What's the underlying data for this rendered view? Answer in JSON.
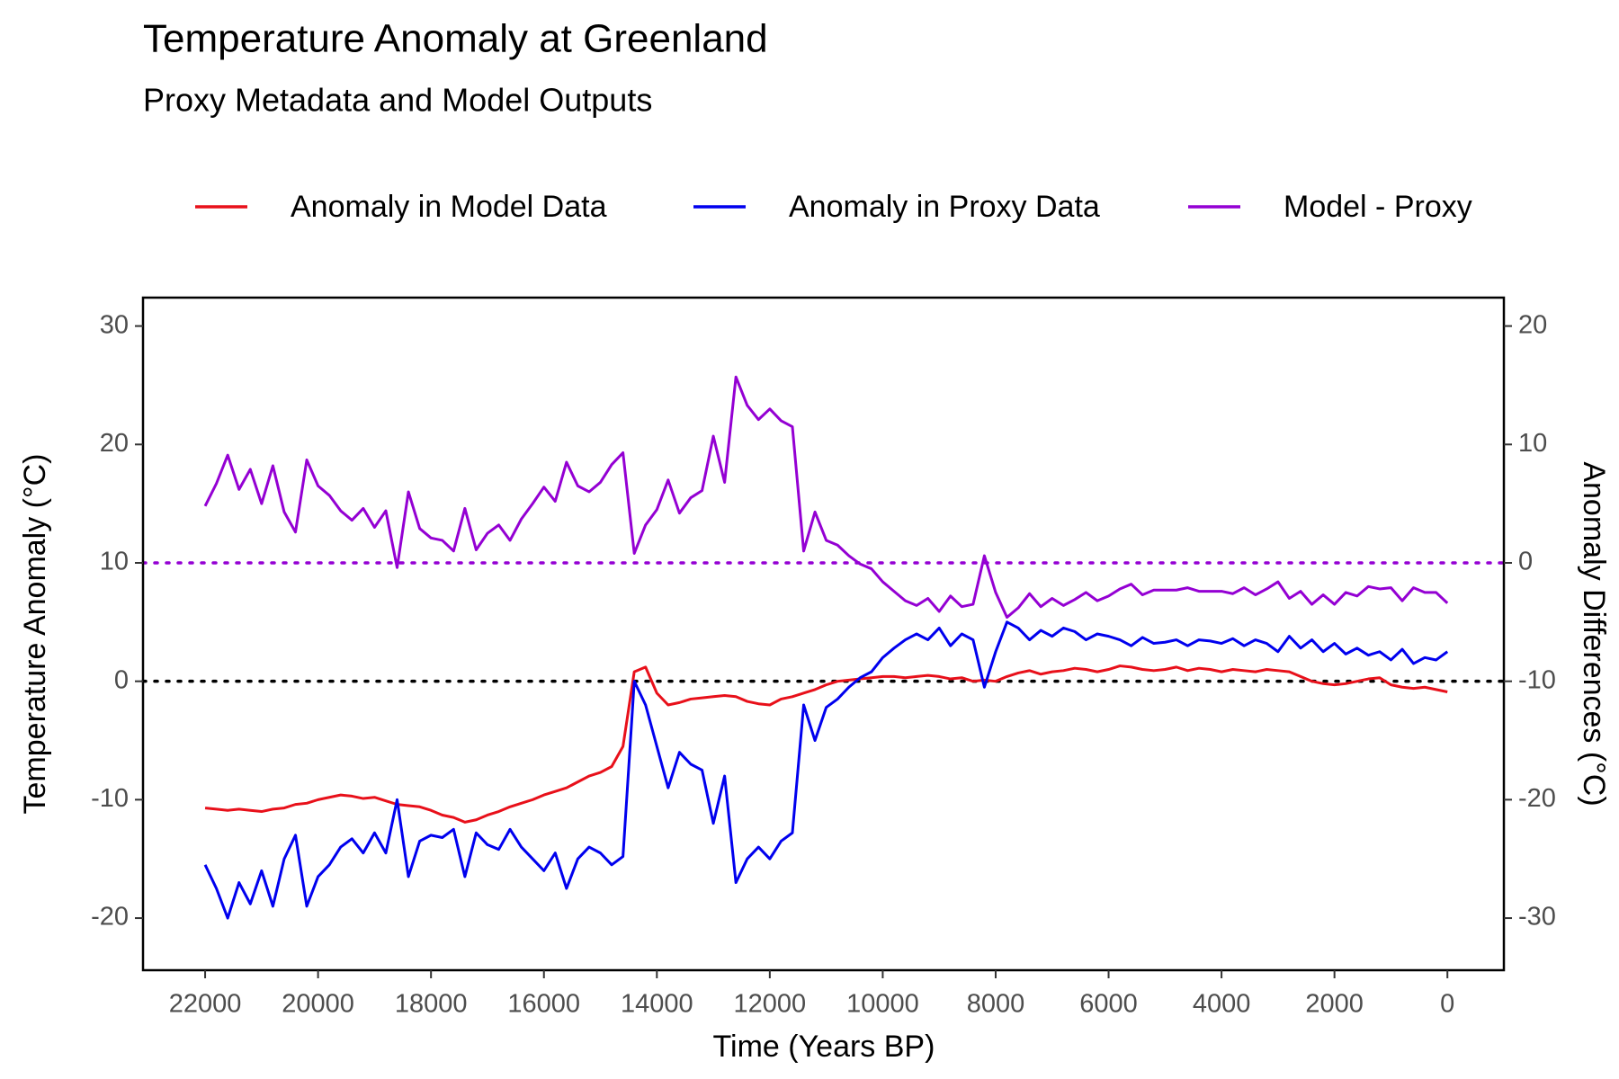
{
  "chart_data": {
    "type": "line",
    "title": "Temperature Anomaly at Greenland",
    "subtitle": "Proxy Metadata and Model Outputs",
    "xlabel": "Time (Years BP)",
    "ylabel": "Temperature Anomaly (°C)",
    "y2label": "Anomaly Differences (°C)",
    "xlim": [
      23100,
      -1000
    ],
    "xticks": [
      22000,
      20000,
      18000,
      16000,
      14000,
      12000,
      10000,
      8000,
      6000,
      4000,
      2000,
      0
    ],
    "ylim": [
      -24.4,
      32.4
    ],
    "yticks": [
      -20,
      -10,
      0,
      10,
      20,
      30
    ],
    "y2lim": [
      -34.4,
      22.4
    ],
    "y2ticks": [
      -30,
      -20,
      -10,
      0,
      10,
      20
    ],
    "legend": "top",
    "grid": false,
    "hlines": [
      {
        "value": 0,
        "axis": "y",
        "color": "#000000"
      },
      {
        "value": 0,
        "axis": "y2",
        "color": "#9400d3"
      }
    ],
    "x": [
      22000,
      21800,
      21600,
      21400,
      21200,
      21000,
      20800,
      20600,
      20400,
      20200,
      20000,
      19800,
      19600,
      19400,
      19200,
      19000,
      18800,
      18600,
      18400,
      18200,
      18000,
      17800,
      17600,
      17400,
      17200,
      17000,
      16800,
      16600,
      16400,
      16200,
      16000,
      15800,
      15600,
      15400,
      15200,
      15000,
      14800,
      14600,
      14400,
      14200,
      14000,
      13800,
      13600,
      13400,
      13200,
      13000,
      12800,
      12600,
      12400,
      12200,
      12000,
      11800,
      11600,
      11400,
      11200,
      11000,
      10800,
      10600,
      10400,
      10200,
      10000,
      9800,
      9600,
      9400,
      9200,
      9000,
      8800,
      8600,
      8400,
      8200,
      8000,
      7800,
      7600,
      7400,
      7200,
      7000,
      6800,
      6600,
      6400,
      6200,
      6000,
      5800,
      5600,
      5400,
      5200,
      5000,
      4800,
      4600,
      4400,
      4200,
      4000,
      3800,
      3600,
      3400,
      3200,
      3000,
      2800,
      2600,
      2400,
      2200,
      2000,
      1800,
      1600,
      1400,
      1200,
      1000,
      800,
      600,
      400,
      200,
      0
    ],
    "series": [
      {
        "name": "Anomaly in Model Data",
        "color": "#e8101a",
        "axis": "y",
        "values": [
          -10.7,
          -10.8,
          -10.9,
          -10.8,
          -10.9,
          -11.0,
          -10.8,
          -10.7,
          -10.4,
          -10.3,
          -10.0,
          -9.8,
          -9.6,
          -9.7,
          -9.9,
          -9.8,
          -10.1,
          -10.4,
          -10.5,
          -10.6,
          -10.9,
          -11.3,
          -11.5,
          -11.9,
          -11.7,
          -11.3,
          -11.0,
          -10.6,
          -10.3,
          -10.0,
          -9.6,
          -9.3,
          -9.0,
          -8.5,
          -8.0,
          -7.7,
          -7.2,
          -5.5,
          0.8,
          1.2,
          -1.0,
          -2.0,
          -1.8,
          -1.5,
          -1.4,
          -1.3,
          -1.2,
          -1.3,
          -1.7,
          -1.9,
          -2.0,
          -1.5,
          -1.3,
          -1.0,
          -0.7,
          -0.3,
          0.0,
          0.1,
          0.2,
          0.3,
          0.4,
          0.4,
          0.3,
          0.4,
          0.5,
          0.4,
          0.2,
          0.3,
          0.0,
          0.1,
          0.0,
          0.4,
          0.7,
          0.9,
          0.6,
          0.8,
          0.9,
          1.1,
          1.0,
          0.8,
          1.0,
          1.3,
          1.2,
          1.0,
          0.9,
          1.0,
          1.2,
          0.9,
          1.1,
          1.0,
          0.8,
          1.0,
          0.9,
          0.8,
          1.0,
          0.9,
          0.8,
          0.4,
          0.0,
          -0.2,
          -0.3,
          -0.2,
          0.0,
          0.2,
          0.3,
          -0.3,
          -0.5,
          -0.6,
          -0.5,
          -0.7,
          -0.9
        ]
      },
      {
        "name": "Anomaly in Proxy Data",
        "color": "#0000ee",
        "axis": "y",
        "values": [
          -15.5,
          -17.5,
          -20.0,
          -17.0,
          -18.8,
          -16.0,
          -19.0,
          -15.0,
          -13.0,
          -19.0,
          -16.5,
          -15.5,
          -14.0,
          -13.3,
          -14.5,
          -12.8,
          -14.5,
          -10.0,
          -16.5,
          -13.5,
          -13.0,
          -13.2,
          -12.5,
          -16.5,
          -12.8,
          -13.8,
          -14.2,
          -12.5,
          -14.0,
          -15.0,
          -16.0,
          -14.5,
          -17.5,
          -15.0,
          -14.0,
          -14.5,
          -15.5,
          -14.8,
          0.0,
          -2.0,
          -5.5,
          -9.0,
          -6.0,
          -7.0,
          -7.5,
          -12.0,
          -8.0,
          -17.0,
          -15.0,
          -14.0,
          -15.0,
          -13.5,
          -12.8,
          -2.0,
          -5.0,
          -2.2,
          -1.5,
          -0.5,
          0.3,
          0.8,
          2.0,
          2.8,
          3.5,
          4.0,
          3.5,
          4.5,
          3.0,
          4.0,
          3.5,
          -0.5,
          2.5,
          5.0,
          4.5,
          3.5,
          4.3,
          3.8,
          4.5,
          4.2,
          3.5,
          4.0,
          3.8,
          3.5,
          3.0,
          3.7,
          3.2,
          3.3,
          3.5,
          3.0,
          3.5,
          3.4,
          3.2,
          3.6,
          3.0,
          3.5,
          3.2,
          2.5,
          3.8,
          2.8,
          3.5,
          2.5,
          3.2,
          2.3,
          2.8,
          2.2,
          2.5,
          1.8,
          2.7,
          1.5,
          2.0,
          1.8,
          2.5
        ]
      },
      {
        "name": "Model - Proxy",
        "color": "#9400d3",
        "axis": "y2",
        "values": [
          4.8,
          6.7,
          9.1,
          6.2,
          7.9,
          5.0,
          8.2,
          4.3,
          2.6,
          8.7,
          6.5,
          5.7,
          4.4,
          3.6,
          4.6,
          3.0,
          4.4,
          -0.4,
          6.0,
          2.9,
          2.1,
          1.9,
          1.0,
          4.6,
          1.1,
          2.5,
          3.2,
          1.9,
          3.7,
          5.0,
          6.4,
          5.2,
          8.5,
          6.5,
          6.0,
          6.8,
          8.3,
          9.3,
          0.8,
          3.2,
          4.5,
          7.0,
          4.2,
          5.5,
          6.1,
          10.7,
          6.8,
          15.7,
          13.3,
          12.1,
          13.0,
          12.0,
          11.5,
          1.0,
          4.3,
          1.9,
          1.5,
          0.6,
          -0.1,
          -0.5,
          -1.6,
          -2.4,
          -3.2,
          -3.6,
          -3.0,
          -4.1,
          -2.8,
          -3.7,
          -3.5,
          0.6,
          -2.5,
          -4.6,
          -3.8,
          -2.6,
          -3.7,
          -3.0,
          -3.6,
          -3.1,
          -2.5,
          -3.2,
          -2.8,
          -2.2,
          -1.8,
          -2.7,
          -2.3,
          -2.3,
          -2.3,
          -2.1,
          -2.4,
          -2.4,
          -2.4,
          -2.6,
          -2.1,
          -2.7,
          -2.2,
          -1.6,
          -3.0,
          -2.4,
          -3.5,
          -2.7,
          -3.5,
          -2.5,
          -2.8,
          -2.0,
          -2.2,
          -2.1,
          -3.2,
          -2.1,
          -2.5,
          -2.5,
          -3.4
        ]
      }
    ]
  }
}
